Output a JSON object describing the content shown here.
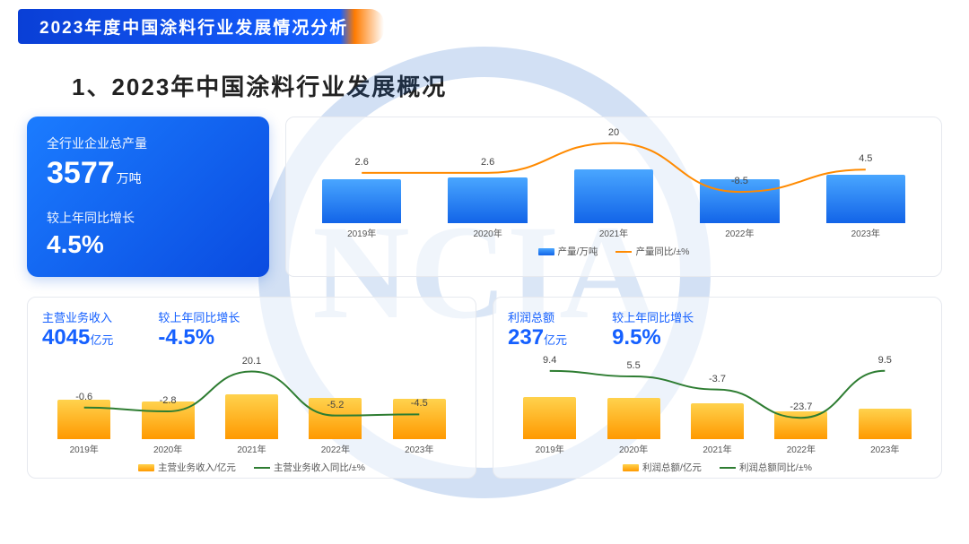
{
  "header": {
    "title": "2023年度中国涂料行业发展情况分析"
  },
  "section_title": "1、2023年中国涂料行业发展概况",
  "watermark_text": "NCIA",
  "kpi": {
    "label1": "全行业企业总产量",
    "value1": "3577",
    "unit1": "万吨",
    "label2": "较上年同比增长",
    "value2": "4.5%"
  },
  "chart_top": {
    "type": "bar+line",
    "years": [
      "2019年",
      "2020年",
      "2021年",
      "2022年",
      "2023年"
    ],
    "bar_values": [
      3300,
      3400,
      4000,
      3300,
      3577
    ],
    "line_values": [
      2.6,
      2.6,
      20,
      -8.5,
      4.5
    ],
    "bar_color_grad": [
      "#49a6ff",
      "#1264e8"
    ],
    "line_color": "#ff8a00",
    "bar_max": 4000,
    "line_range": [
      -15,
      25
    ],
    "legend": {
      "bar": "产量/万吨",
      "line": "产量同比/±%"
    }
  },
  "panel_left": {
    "metric1": {
      "label": "主营业务收入",
      "value": "4045",
      "unit": "亿元"
    },
    "metric2": {
      "label": "较上年同比增长",
      "value": "-4.5%"
    },
    "chart": {
      "type": "bar+line",
      "years": [
        "2019年",
        "2020年",
        "2021年",
        "2022年",
        "2023年"
      ],
      "bar_values": [
        4000,
        3800,
        4500,
        4150,
        4045
      ],
      "line_values": [
        -0.6,
        -2.8,
        20.1,
        -5.2,
        -4.5
      ],
      "bar_color_grad": [
        "#ffd24d",
        "#ff9900"
      ],
      "line_color": "#2e7d32",
      "bar_max": 4500,
      "line_range": [
        -10,
        25
      ],
      "legend": {
        "bar": "主营业务收入/亿元",
        "line": "主营业务收入同比/±%"
      }
    }
  },
  "panel_right": {
    "metric1": {
      "label": "利润总额",
      "value": "237",
      "unit": "亿元"
    },
    "metric2": {
      "label": "较上年同比增长",
      "value": "9.5%"
    },
    "chart": {
      "type": "bar+line",
      "years": [
        "2019年",
        "2020年",
        "2021年",
        "2022年",
        "2023年"
      ],
      "bar_values": [
        330,
        320,
        280,
        220,
        237
      ],
      "line_values": [
        9.4,
        5.5,
        -3.7,
        -23.7,
        9.5
      ],
      "bar_color_grad": [
        "#ffd24d",
        "#ff9900"
      ],
      "line_color": "#2e7d32",
      "bar_max": 350,
      "line_range": [
        -28,
        15
      ],
      "legend": {
        "bar": "利润总额/亿元",
        "line": "利润总额同比/±%"
      }
    }
  }
}
